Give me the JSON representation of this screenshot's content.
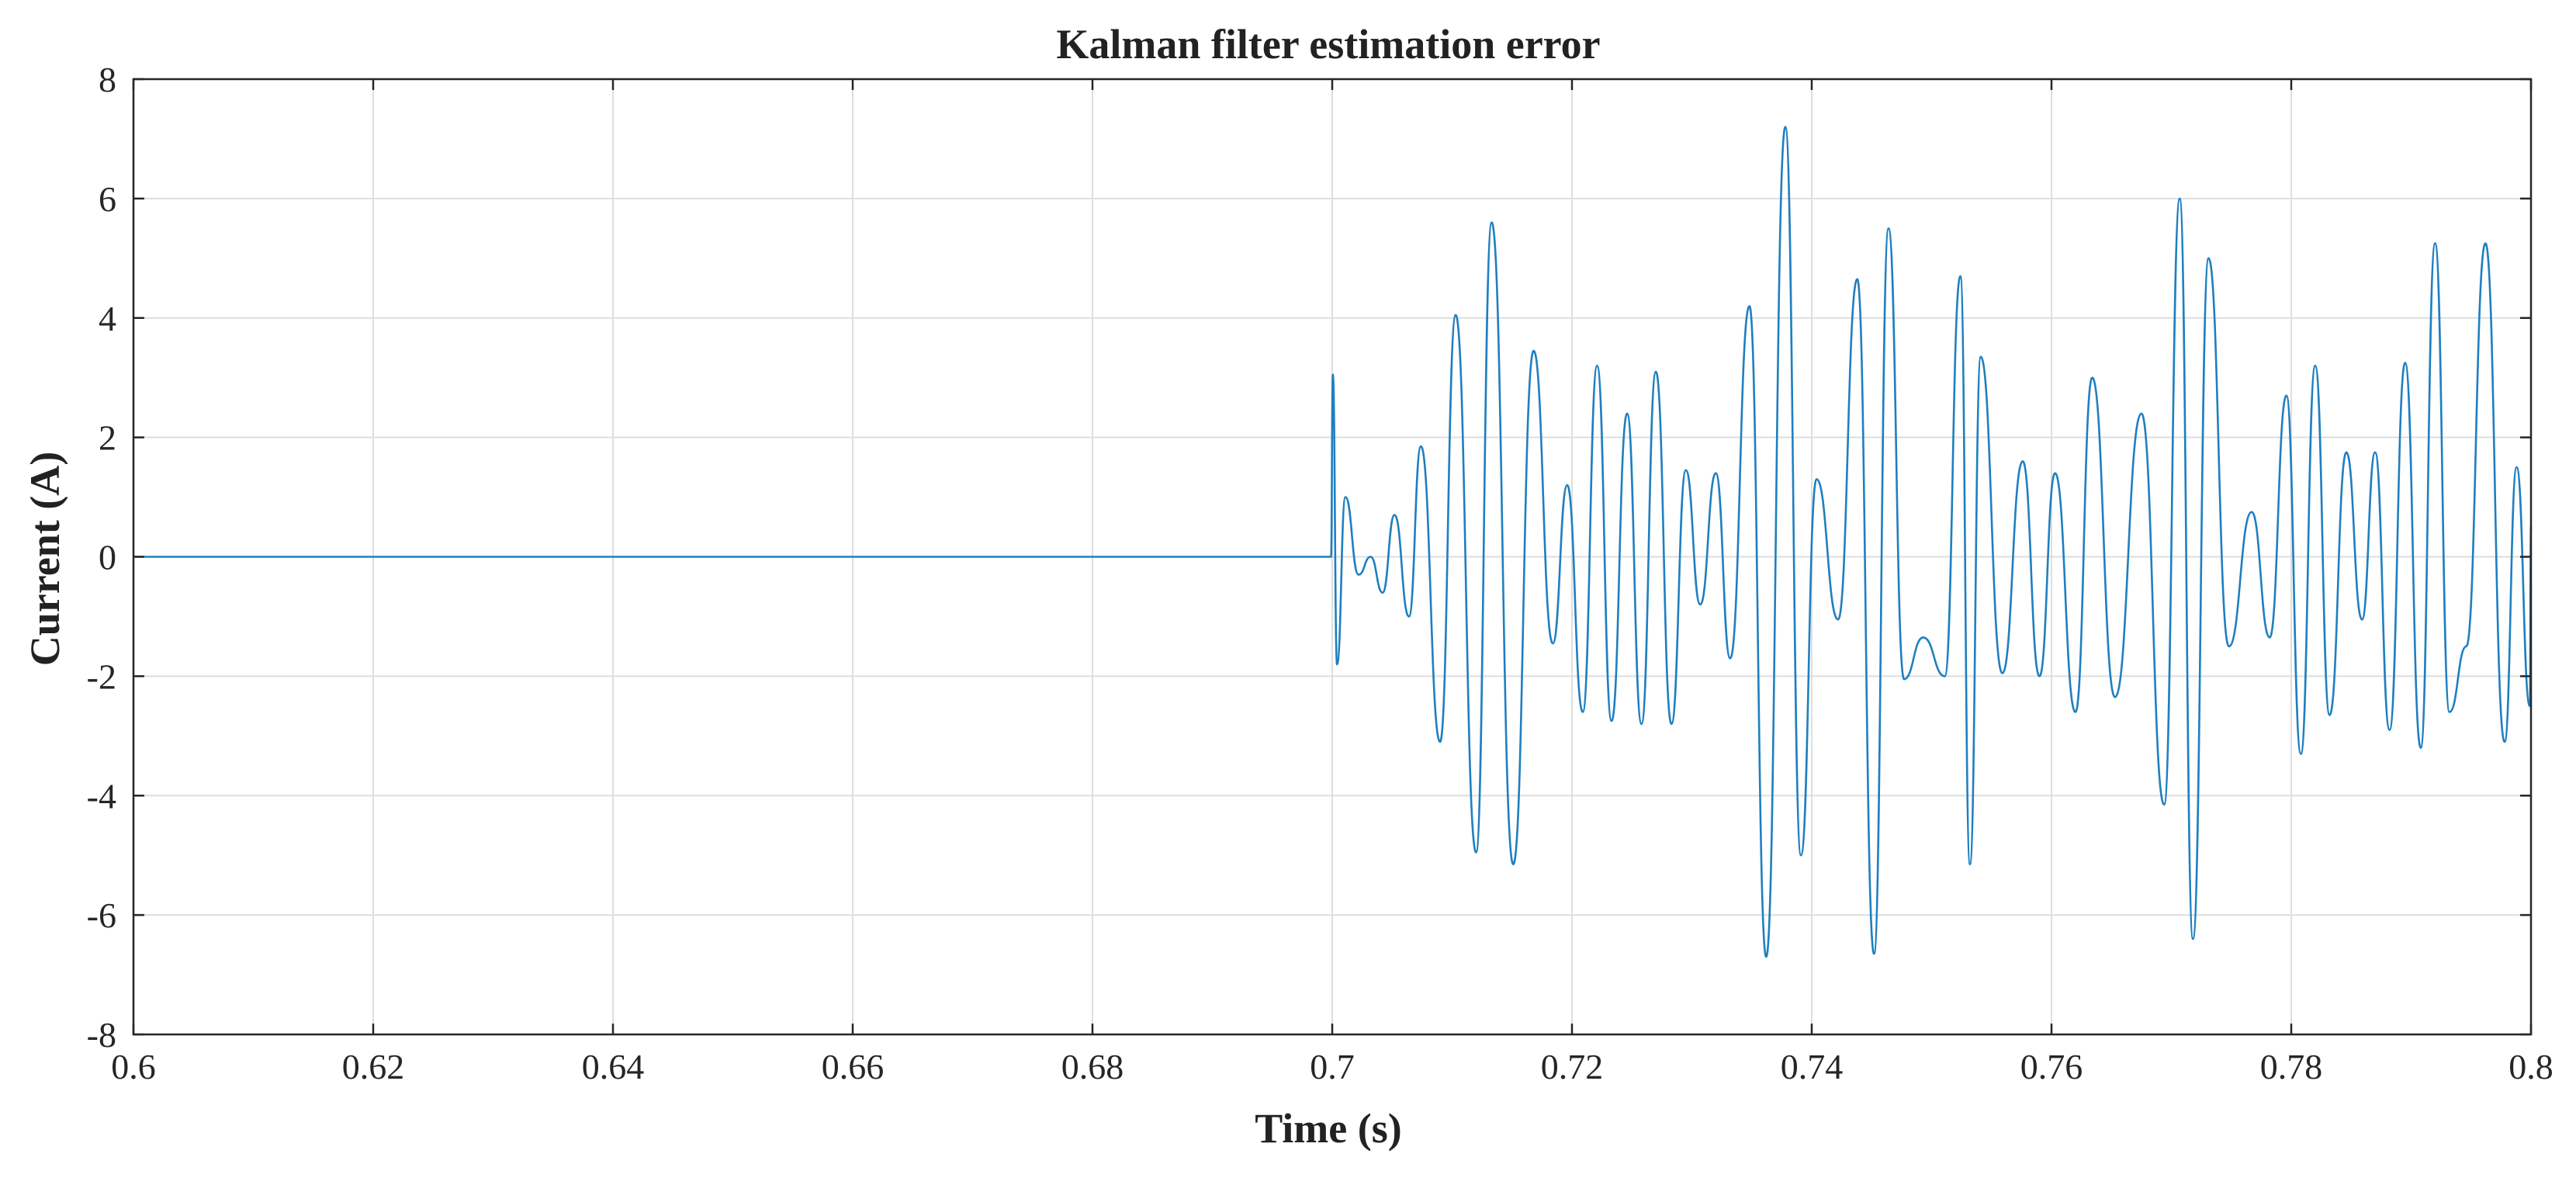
{
  "chart_data": {
    "type": "line",
    "title": "Kalman filter estimation error",
    "xlabel": "Time (s)",
    "ylabel": "Current (A)",
    "xlim": [
      0.6,
      0.8
    ],
    "ylim": [
      -8,
      8
    ],
    "grid": true,
    "x_ticks": [
      0.6,
      0.62,
      0.64,
      0.66,
      0.68,
      0.7,
      0.72,
      0.74,
      0.76,
      0.78,
      0.8
    ],
    "x_tick_labels": [
      "0.6",
      "0.62",
      "0.64",
      "0.66",
      "0.68",
      "0.7",
      "0.72",
      "0.74",
      "0.76",
      "0.78",
      "0.8"
    ],
    "y_ticks": [
      -8,
      -6,
      -4,
      -2,
      0,
      2,
      4,
      6,
      8
    ],
    "y_tick_labels": [
      "-8",
      "-6",
      "-4",
      "-2",
      "0",
      "2",
      "4",
      "6",
      "8"
    ],
    "color": "#1f7fc0",
    "series": [
      {
        "name": "Estimation error",
        "x": [
          0.6,
          0.62,
          0.64,
          0.66,
          0.68,
          0.6999,
          0.70005,
          0.7004,
          0.7011,
          0.7022,
          0.7032,
          0.7042,
          0.7052,
          0.7064,
          0.7074,
          0.709,
          0.7103,
          0.712,
          0.7133,
          0.7151,
          0.7168,
          0.7184,
          0.7196,
          0.7209,
          0.7221,
          0.7233,
          0.7246,
          0.7258,
          0.727,
          0.7283,
          0.7295,
          0.7307,
          0.732,
          0.7332,
          0.7348,
          0.7362,
          0.7378,
          0.7391,
          0.7404,
          0.7422,
          0.7438,
          0.7452,
          0.7464,
          0.7477,
          0.7493,
          0.7511,
          0.7524,
          0.7532,
          0.7541,
          0.7559,
          0.7576,
          0.759,
          0.7603,
          0.762,
          0.7634,
          0.7653,
          0.7675,
          0.7694,
          0.7707,
          0.7718,
          0.7731,
          0.7748,
          0.7767,
          0.7782,
          0.7796,
          0.7808,
          0.782,
          0.7832,
          0.7846,
          0.7859,
          0.787,
          0.7882,
          0.7895,
          0.7908,
          0.792,
          0.7932,
          0.7946,
          0.7962,
          0.7978,
          0.7988,
          0.7999,
          0.8
        ],
        "y": [
          0.0,
          0.0,
          0.0,
          0.0,
          0.0,
          0.0,
          3.05,
          -1.8,
          1.0,
          -0.3,
          0.0,
          -0.6,
          0.7,
          -1.0,
          1.85,
          -3.1,
          4.05,
          -4.95,
          5.6,
          -5.15,
          3.45,
          -1.45,
          1.2,
          -2.6,
          3.2,
          -2.75,
          2.4,
          -2.8,
          3.1,
          -2.8,
          1.45,
          -0.8,
          1.4,
          -1.7,
          4.2,
          -6.7,
          7.2,
          -5.0,
          1.3,
          -1.05,
          4.65,
          -6.65,
          5.5,
          -2.05,
          -1.35,
          -2.0,
          4.7,
          -5.15,
          3.35,
          -1.95,
          1.6,
          -2.0,
          1.4,
          -2.6,
          3.0,
          -2.35,
          2.4,
          -4.15,
          6.0,
          -6.4,
          5.0,
          -1.5,
          0.75,
          -1.35,
          2.7,
          -3.3,
          3.2,
          -2.65,
          1.75,
          -1.05,
          1.75,
          -2.9,
          3.25,
          -3.2,
          5.25,
          -2.6,
          -1.5,
          5.25,
          -3.1,
          1.5,
          -2.5,
          0.5
        ]
      }
    ]
  }
}
